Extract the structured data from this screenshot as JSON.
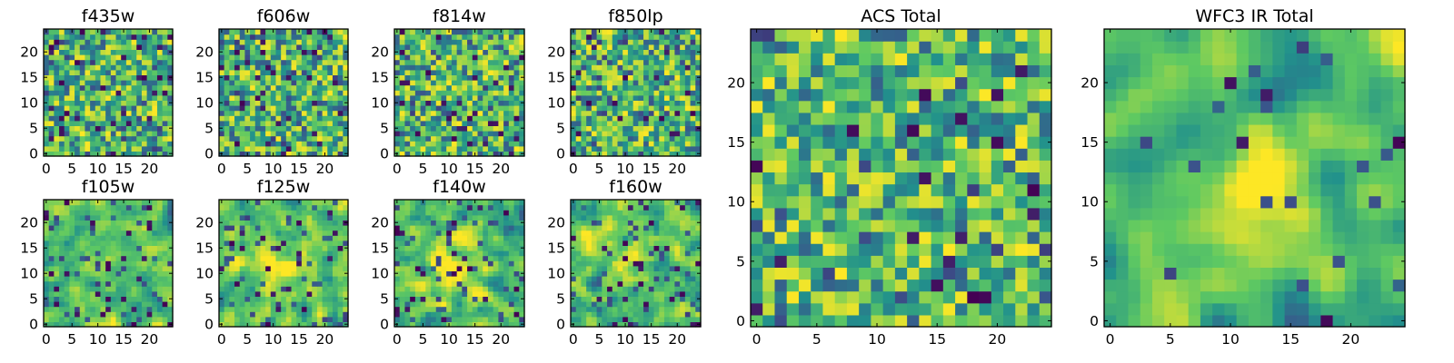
{
  "figure": {
    "colormap": "viridis",
    "colormap_stops": [
      "#440154",
      "#3b528b",
      "#21918c",
      "#5ec962",
      "#fde725"
    ]
  },
  "chart_data": [
    {
      "type": "heatmap",
      "title": "f435w",
      "grid": [
        25,
        25
      ],
      "xlim": [
        0,
        24
      ],
      "ylim": [
        0,
        24
      ],
      "xticks": [
        0,
        5,
        10,
        15,
        20
      ],
      "yticks": [
        0,
        5,
        10,
        15,
        20
      ],
      "seed": 11,
      "smooth": 0,
      "hole_rate": 0.05,
      "blob": null
    },
    {
      "type": "heatmap",
      "title": "f606w",
      "grid": [
        25,
        25
      ],
      "xlim": [
        0,
        24
      ],
      "ylim": [
        0,
        24
      ],
      "xticks": [
        0,
        5,
        10,
        15,
        20
      ],
      "yticks": [
        0,
        5,
        10,
        15,
        20
      ],
      "seed": 23,
      "smooth": 0,
      "hole_rate": 0.05,
      "blob": null
    },
    {
      "type": "heatmap",
      "title": "f814w",
      "grid": [
        25,
        25
      ],
      "xlim": [
        0,
        24
      ],
      "ylim": [
        0,
        24
      ],
      "xticks": [
        0,
        5,
        10,
        15,
        20
      ],
      "yticks": [
        0,
        5,
        10,
        15,
        20
      ],
      "seed": 37,
      "smooth": 0,
      "hole_rate": 0.05,
      "blob": null
    },
    {
      "type": "heatmap",
      "title": "f850lp",
      "grid": [
        25,
        25
      ],
      "xlim": [
        0,
        24
      ],
      "ylim": [
        0,
        24
      ],
      "xticks": [
        0,
        5,
        10,
        15,
        20
      ],
      "yticks": [
        0,
        5,
        10,
        15,
        20
      ],
      "seed": 41,
      "smooth": 0,
      "hole_rate": 0.05,
      "blob": null
    },
    {
      "type": "heatmap",
      "title": "f105w",
      "grid": [
        25,
        25
      ],
      "xlim": [
        0,
        24
      ],
      "ylim": [
        0,
        24
      ],
      "xticks": [
        0,
        5,
        10,
        15,
        20
      ],
      "yticks": [
        0,
        5,
        10,
        15,
        20
      ],
      "seed": 53,
      "smooth": 1,
      "hole_rate": 0.035,
      "blob": null
    },
    {
      "type": "heatmap",
      "title": "f125w",
      "grid": [
        25,
        25
      ],
      "xlim": [
        0,
        24
      ],
      "ylim": [
        0,
        24
      ],
      "xticks": [
        0,
        5,
        10,
        15,
        20
      ],
      "yticks": [
        0,
        5,
        10,
        15,
        20
      ],
      "seed": 67,
      "smooth": 1,
      "hole_rate": 0.035,
      "blob": [
        11,
        12,
        4,
        0.15
      ]
    },
    {
      "type": "heatmap",
      "title": "f140w",
      "grid": [
        25,
        25
      ],
      "xlim": [
        0,
        24
      ],
      "ylim": [
        0,
        24
      ],
      "xticks": [
        0,
        5,
        10,
        15,
        20
      ],
      "yticks": [
        0,
        5,
        10,
        15,
        20
      ],
      "seed": 71,
      "smooth": 1,
      "hole_rate": 0.035,
      "blob": [
        12,
        11,
        5,
        0.15
      ]
    },
    {
      "type": "heatmap",
      "title": "f160w",
      "grid": [
        25,
        25
      ],
      "xlim": [
        0,
        24
      ],
      "ylim": [
        0,
        24
      ],
      "xticks": [
        0,
        5,
        10,
        15,
        20
      ],
      "yticks": [
        0,
        5,
        10,
        15,
        20
      ],
      "seed": 83,
      "smooth": 1,
      "hole_rate": 0.035,
      "blob": [
        12,
        13,
        5,
        0.2
      ]
    },
    {
      "type": "heatmap",
      "title": "ACS Total",
      "grid": [
        25,
        25
      ],
      "xlim": [
        0,
        24
      ],
      "ylim": [
        0,
        24
      ],
      "xticks": [
        0,
        5,
        10,
        15,
        20
      ],
      "yticks": [
        0,
        5,
        10,
        15,
        20
      ],
      "seed": 97,
      "smooth": 0,
      "hole_rate": 0.03,
      "blob": null
    },
    {
      "type": "heatmap",
      "title": "WFC3 IR Total",
      "grid": [
        25,
        25
      ],
      "xlim": [
        0,
        24
      ],
      "ylim": [
        0,
        24
      ],
      "xticks": [
        0,
        5,
        10,
        15,
        20
      ],
      "yticks": [
        0,
        5,
        10,
        15,
        20
      ],
      "seed": 101,
      "smooth": 2,
      "hole_rate": 0.015,
      "blob": [
        12,
        12,
        5,
        0.22
      ]
    }
  ]
}
